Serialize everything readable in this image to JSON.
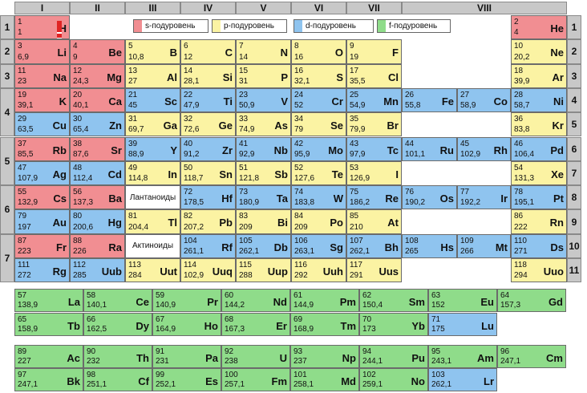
{
  "groups": [
    "I",
    "II",
    "III",
    "IV",
    "V",
    "VI",
    "VII",
    "VIII"
  ],
  "periods": [
    "1",
    "2",
    "3",
    "4",
    "5",
    "6",
    "7"
  ],
  "rows": [
    "1",
    "2",
    "3",
    "4",
    "5",
    "6",
    "7",
    "8",
    "9",
    "10",
    "11"
  ],
  "legend": {
    "s": "s-подуровень",
    "p": "p-подуровень",
    "d": "d-подуровень",
    "f": "f-подуровень"
  },
  "labels": {
    "lanthanides": "Лантаноиды",
    "actinides": "Актиноиды"
  },
  "colors": {
    "s": "#f18e92",
    "p": "#fbf3a3",
    "d": "#8fc4ef",
    "f": "#8fdc8a",
    "header": "#c8c8c8"
  },
  "elements": [
    {
      "sym": "H",
      "n": "1",
      "m": "1",
      "t": "s"
    },
    {
      "sym": "He",
      "n": "2",
      "m": "4",
      "t": "s"
    },
    {
      "sym": "Li",
      "n": "3",
      "m": "6,9",
      "t": "s"
    },
    {
      "sym": "Be",
      "n": "4",
      "m": "9",
      "t": "s"
    },
    {
      "sym": "B",
      "n": "5",
      "m": "10,8",
      "t": "p"
    },
    {
      "sym": "C",
      "n": "6",
      "m": "12",
      "t": "p"
    },
    {
      "sym": "N",
      "n": "7",
      "m": "14",
      "t": "p"
    },
    {
      "sym": "O",
      "n": "8",
      "m": "16",
      "t": "p"
    },
    {
      "sym": "F",
      "n": "9",
      "m": "19",
      "t": "p"
    },
    {
      "sym": "Ne",
      "n": "10",
      "m": "20,2",
      "t": "p"
    },
    {
      "sym": "Na",
      "n": "11",
      "m": "23",
      "t": "s"
    },
    {
      "sym": "Mg",
      "n": "12",
      "m": "24,3",
      "t": "s"
    },
    {
      "sym": "Al",
      "n": "13",
      "m": "27",
      "t": "p"
    },
    {
      "sym": "Si",
      "n": "14",
      "m": "28,1",
      "t": "p"
    },
    {
      "sym": "P",
      "n": "15",
      "m": "31",
      "t": "p"
    },
    {
      "sym": "S",
      "n": "16",
      "m": "32,1",
      "t": "p"
    },
    {
      "sym": "Cl",
      "n": "17",
      "m": "35,5",
      "t": "p"
    },
    {
      "sym": "Ar",
      "n": "18",
      "m": "39,9",
      "t": "p"
    },
    {
      "sym": "K",
      "n": "19",
      "m": "39,1",
      "t": "s"
    },
    {
      "sym": "Ca",
      "n": "20",
      "m": "40,1",
      "t": "s"
    },
    {
      "sym": "Sc",
      "n": "21",
      "m": "45",
      "t": "d"
    },
    {
      "sym": "Ti",
      "n": "22",
      "m": "47,9",
      "t": "d"
    },
    {
      "sym": "V",
      "n": "23",
      "m": "50,9",
      "t": "d"
    },
    {
      "sym": "Cr",
      "n": "24",
      "m": "52",
      "t": "d"
    },
    {
      "sym": "Mn",
      "n": "25",
      "m": "54,9",
      "t": "d"
    },
    {
      "sym": "Fe",
      "n": "26",
      "m": "55,8",
      "t": "d"
    },
    {
      "sym": "Co",
      "n": "27",
      "m": "58,9",
      "t": "d"
    },
    {
      "sym": "Ni",
      "n": "28",
      "m": "58,7",
      "t": "d"
    },
    {
      "sym": "Cu",
      "n": "29",
      "m": "63,5",
      "t": "d"
    },
    {
      "sym": "Zn",
      "n": "30",
      "m": "65,4",
      "t": "d"
    },
    {
      "sym": "Ga",
      "n": "31",
      "m": "69,7",
      "t": "p"
    },
    {
      "sym": "Ge",
      "n": "32",
      "m": "72,6",
      "t": "p"
    },
    {
      "sym": "As",
      "n": "33",
      "m": "74,9",
      "t": "p"
    },
    {
      "sym": "Se",
      "n": "34",
      "m": "79",
      "t": "p"
    },
    {
      "sym": "Br",
      "n": "35",
      "m": "79,9",
      "t": "p"
    },
    {
      "sym": "Kr",
      "n": "36",
      "m": "83,8",
      "t": "p"
    },
    {
      "sym": "Rb",
      "n": "37",
      "m": "85,5",
      "t": "s"
    },
    {
      "sym": "Sr",
      "n": "38",
      "m": "87,6",
      "t": "s"
    },
    {
      "sym": "Y",
      "n": "39",
      "m": "88,9",
      "t": "d"
    },
    {
      "sym": "Zr",
      "n": "40",
      "m": "91,2",
      "t": "d"
    },
    {
      "sym": "Nb",
      "n": "41",
      "m": "92,9",
      "t": "d"
    },
    {
      "sym": "Mo",
      "n": "42",
      "m": "95,9",
      "t": "d"
    },
    {
      "sym": "Tc",
      "n": "43",
      "m": "97,9",
      "t": "d"
    },
    {
      "sym": "Ru",
      "n": "44",
      "m": "101,1",
      "t": "d"
    },
    {
      "sym": "Rh",
      "n": "45",
      "m": "102,9",
      "t": "d"
    },
    {
      "sym": "Pd",
      "n": "46",
      "m": "106,4",
      "t": "d"
    },
    {
      "sym": "Ag",
      "n": "47",
      "m": "107,9",
      "t": "d"
    },
    {
      "sym": "Cd",
      "n": "48",
      "m": "112,4",
      "t": "d"
    },
    {
      "sym": "In",
      "n": "49",
      "m": "114,8",
      "t": "p"
    },
    {
      "sym": "Sn",
      "n": "50",
      "m": "118,7",
      "t": "p"
    },
    {
      "sym": "Sb",
      "n": "51",
      "m": "121,8",
      "t": "p"
    },
    {
      "sym": "Te",
      "n": "52",
      "m": "127,6",
      "t": "p"
    },
    {
      "sym": "I",
      "n": "53",
      "m": "126,9",
      "t": "p"
    },
    {
      "sym": "Xe",
      "n": "54",
      "m": "131,3",
      "t": "p"
    },
    {
      "sym": "Cs",
      "n": "55",
      "m": "132,9",
      "t": "s"
    },
    {
      "sym": "Ba",
      "n": "56",
      "m": "137,3",
      "t": "s"
    },
    {
      "sym": "Hf",
      "n": "72",
      "m": "178,5",
      "t": "d"
    },
    {
      "sym": "Ta",
      "n": "73",
      "m": "180,9",
      "t": "d"
    },
    {
      "sym": "W",
      "n": "74",
      "m": "183,8",
      "t": "d"
    },
    {
      "sym": "Re",
      "n": "75",
      "m": "186,2",
      "t": "d"
    },
    {
      "sym": "Os",
      "n": "76",
      "m": "190,2",
      "t": "d"
    },
    {
      "sym": "Ir",
      "n": "77",
      "m": "192,2",
      "t": "d"
    },
    {
      "sym": "Pt",
      "n": "78",
      "m": "195,1",
      "t": "d"
    },
    {
      "sym": "Au",
      "n": "79",
      "m": "197",
      "t": "d"
    },
    {
      "sym": "Hg",
      "n": "80",
      "m": "200,6",
      "t": "d"
    },
    {
      "sym": "Tl",
      "n": "81",
      "m": "204,4",
      "t": "p"
    },
    {
      "sym": "Pb",
      "n": "82",
      "m": "207,2",
      "t": "p"
    },
    {
      "sym": "Bi",
      "n": "83",
      "m": "209",
      "t": "p"
    },
    {
      "sym": "Po",
      "n": "84",
      "m": "209",
      "t": "p"
    },
    {
      "sym": "At",
      "n": "85",
      "m": "210",
      "t": "p"
    },
    {
      "sym": "Rn",
      "n": "86",
      "m": "222",
      "t": "p"
    },
    {
      "sym": "Fr",
      "n": "87",
      "m": "223",
      "t": "s"
    },
    {
      "sym": "Ra",
      "n": "88",
      "m": "226",
      "t": "s"
    },
    {
      "sym": "Rf",
      "n": "104",
      "m": "261,1",
      "t": "d"
    },
    {
      "sym": "Db",
      "n": "105",
      "m": "262,1",
      "t": "d"
    },
    {
      "sym": "Sg",
      "n": "106",
      "m": "263,1",
      "t": "d"
    },
    {
      "sym": "Bh",
      "n": "107",
      "m": "262,1",
      "t": "d"
    },
    {
      "sym": "Hs",
      "n": "108",
      "m": "265",
      "t": "d"
    },
    {
      "sym": "Mt",
      "n": "109",
      "m": "266",
      "t": "d"
    },
    {
      "sym": "Ds",
      "n": "110",
      "m": "271",
      "t": "d"
    },
    {
      "sym": "Rg",
      "n": "111",
      "m": "272",
      "t": "d"
    },
    {
      "sym": "Uub",
      "n": "112",
      "m": "285",
      "t": "d"
    },
    {
      "sym": "Uut",
      "n": "113",
      "m": "284",
      "t": "p"
    },
    {
      "sym": "Uuq",
      "n": "114",
      "m": "102,9",
      "t": "p"
    },
    {
      "sym": "Uup",
      "n": "115",
      "m": "288",
      "t": "p"
    },
    {
      "sym": "Uuh",
      "n": "116",
      "m": "292",
      "t": "p"
    },
    {
      "sym": "Uus",
      "n": "117",
      "m": "291",
      "t": "p"
    },
    {
      "sym": "Uuo",
      "n": "118",
      "m": "294",
      "t": "p"
    },
    {
      "sym": "La",
      "n": "57",
      "m": "138,9",
      "t": "f"
    },
    {
      "sym": "Ce",
      "n": "58",
      "m": "140,1",
      "t": "f"
    },
    {
      "sym": "Pr",
      "n": "59",
      "m": "140,9",
      "t": "f"
    },
    {
      "sym": "Nd",
      "n": "60",
      "m": "144,2",
      "t": "f"
    },
    {
      "sym": "Pm",
      "n": "61",
      "m": "144,9",
      "t": "f"
    },
    {
      "sym": "Sm",
      "n": "62",
      "m": "150,4",
      "t": "f"
    },
    {
      "sym": "Eu",
      "n": "63",
      "m": "152",
      "t": "f"
    },
    {
      "sym": "Gd",
      "n": "64",
      "m": "157,3",
      "t": "f"
    },
    {
      "sym": "Tb",
      "n": "65",
      "m": "158,9",
      "t": "f"
    },
    {
      "sym": "Dy",
      "n": "66",
      "m": "162,5",
      "t": "f"
    },
    {
      "sym": "Ho",
      "n": "67",
      "m": "164,9",
      "t": "f"
    },
    {
      "sym": "Er",
      "n": "68",
      "m": "167,3",
      "t": "f"
    },
    {
      "sym": "Tm",
      "n": "69",
      "m": "168,9",
      "t": "f"
    },
    {
      "sym": "Yb",
      "n": "70",
      "m": "173",
      "t": "f"
    },
    {
      "sym": "Lu",
      "n": "71",
      "m": "175",
      "t": "d"
    },
    {
      "sym": "Ac",
      "n": "89",
      "m": "227",
      "t": "f"
    },
    {
      "sym": "Th",
      "n": "90",
      "m": "232",
      "t": "f"
    },
    {
      "sym": "Pa",
      "n": "91",
      "m": "231",
      "t": "f"
    },
    {
      "sym": "U",
      "n": "92",
      "m": "238",
      "t": "f"
    },
    {
      "sym": "Np",
      "n": "93",
      "m": "237",
      "t": "f"
    },
    {
      "sym": "Pu",
      "n": "94",
      "m": "244,1",
      "t": "f"
    },
    {
      "sym": "Am",
      "n": "95",
      "m": "243,1",
      "t": "f"
    },
    {
      "sym": "Cm",
      "n": "96",
      "m": "247,1",
      "t": "f"
    },
    {
      "sym": "Bk",
      "n": "97",
      "m": "247,1",
      "t": "f"
    },
    {
      "sym": "Cf",
      "n": "98",
      "m": "251,1",
      "t": "f"
    },
    {
      "sym": "Es",
      "n": "99",
      "m": "252,1",
      "t": "f"
    },
    {
      "sym": "Fm",
      "n": "100",
      "m": "257,1",
      "t": "f"
    },
    {
      "sym": "Md",
      "n": "101",
      "m": "258,1",
      "t": "f"
    },
    {
      "sym": "No",
      "n": "102",
      "m": "259,1",
      "t": "f"
    },
    {
      "sym": "Lr",
      "n": "103",
      "m": "262,1",
      "t": "d"
    }
  ]
}
